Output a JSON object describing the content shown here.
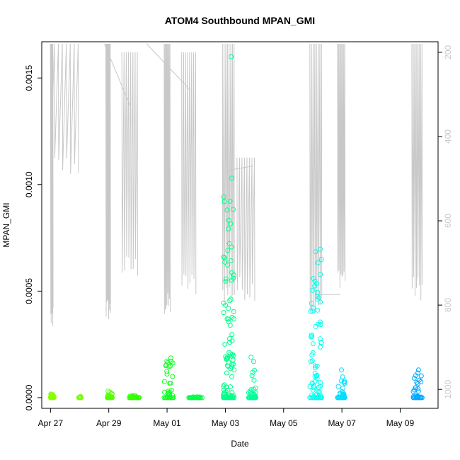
{
  "chart_data": {
    "type": "scatter",
    "title": "ATOM4 Southbound MPAN_GMI",
    "xlabel": "Date",
    "ylabel": "MPAN_GMI",
    "x_ticks": [
      "Apr 27",
      "Apr 29",
      "May 01",
      "May 03",
      "May 05",
      "May 07",
      "May 09"
    ],
    "x_range_days": [
      26.7,
      40.3
    ],
    "x_tick_days": [
      27,
      29,
      31,
      33,
      35,
      37,
      39
    ],
    "ylim": [
      -5e-05,
      0.00167
    ],
    "y_ticks": [
      0.0,
      0.0005,
      0.001,
      0.0015
    ],
    "y_tick_labels": [
      "0.0000",
      "0.0005",
      "0.0010",
      "0.0015"
    ],
    "y2_ticks": [
      200,
      400,
      600,
      800,
      1000
    ],
    "y2_range": [
      175,
      1045
    ],
    "pressure_color": "#c8c8c8",
    "series": [
      {
        "x_start": 27.0,
        "x_end": 27.12,
        "max": 2e-05,
        "color": "#88ff00"
      },
      {
        "x_start": 27.97,
        "x_end": 28.05,
        "max": 5e-06,
        "color": "#77ff00"
      },
      {
        "x_start": 28.95,
        "x_end": 29.12,
        "max": 4e-05,
        "color": "#55ff00"
      },
      {
        "x_start": 29.7,
        "x_end": 30.05,
        "max": 1e-05,
        "color": "#33ff00"
      },
      {
        "x_start": 30.9,
        "x_end": 31.22,
        "max": 0.00019,
        "color": "#11ff22"
      },
      {
        "x_start": 31.75,
        "x_end": 32.2,
        "max": 5e-06,
        "color": "#00ff44"
      },
      {
        "x_start": 32.93,
        "x_end": 33.3,
        "max": 0.00096,
        "color": "#00ff88"
      },
      {
        "x_start": 33.8,
        "x_end": 34.05,
        "max": 0.0002,
        "color": "#00ff99"
      },
      {
        "x_start": 35.9,
        "x_end": 36.3,
        "max": 0.0007,
        "color": "#00ffee"
      },
      {
        "x_start": 36.85,
        "x_end": 37.1,
        "max": 0.00014,
        "color": "#00ddff"
      },
      {
        "x_start": 39.45,
        "x_end": 39.75,
        "max": 0.00015,
        "color": "#00aaff"
      }
    ],
    "outliers": [
      {
        "x": 33.2,
        "y": 0.0016,
        "color": "#00ff99"
      },
      {
        "x": 33.22,
        "y": 0.00103,
        "color": "#00ff99"
      }
    ],
    "pressure_profiles": [
      {
        "x_start": 27.0,
        "x_end": 27.08,
        "min": 180,
        "max": 860
      },
      {
        "x_start": 27.0,
        "x_end": 27.95,
        "min": 180,
        "max": 500
      },
      {
        "x_start": 28.9,
        "x_end": 29.05,
        "min": 180,
        "max": 840
      },
      {
        "x_start": 29.45,
        "x_end": 29.98,
        "min": 200,
        "max": 740
      },
      {
        "x_start": 30.9,
        "x_end": 31.1,
        "min": 180,
        "max": 830
      },
      {
        "x_start": 31.5,
        "x_end": 31.98,
        "min": 200,
        "max": 780
      },
      {
        "x_start": 32.9,
        "x_end": 33.3,
        "min": 180,
        "max": 800
      },
      {
        "x_start": 33.4,
        "x_end": 34.0,
        "min": 450,
        "max": 790
      },
      {
        "x_start": 35.9,
        "x_end": 36.3,
        "min": 180,
        "max": 830
      },
      {
        "x_start": 36.85,
        "x_end": 37.1,
        "min": 180,
        "max": 760
      },
      {
        "x_start": 39.4,
        "x_end": 39.75,
        "min": 180,
        "max": 790
      }
    ]
  }
}
